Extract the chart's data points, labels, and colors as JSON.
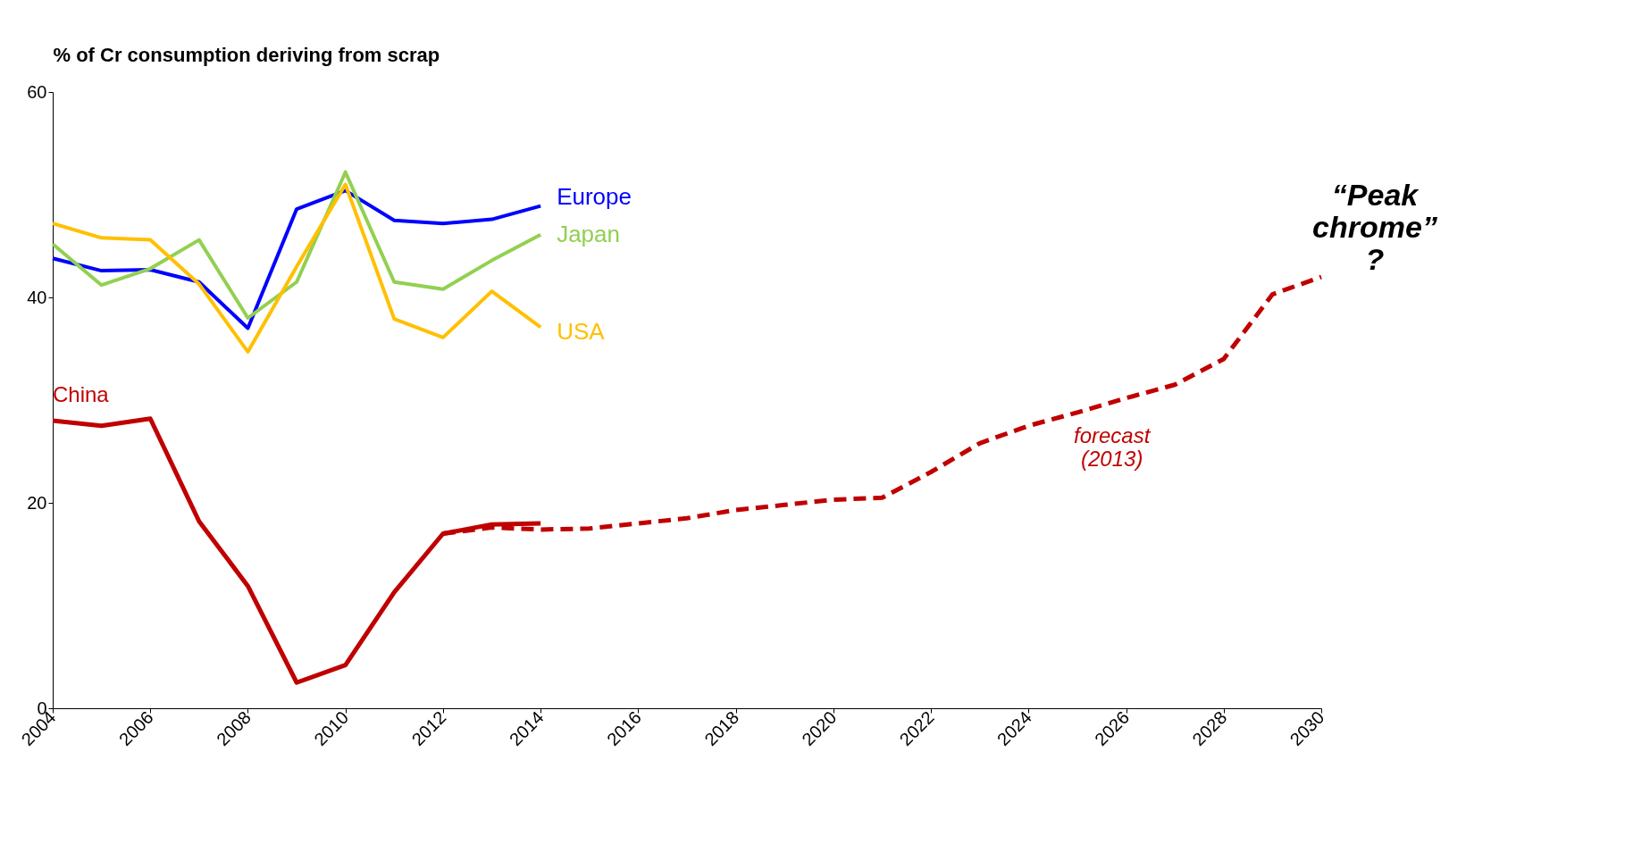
{
  "chart_data": {
    "type": "line",
    "ylabel": "% of Cr consumption deriving from scrap",
    "x": [
      2004,
      2005,
      2006,
      2007,
      2008,
      2009,
      2010,
      2011,
      2012,
      2013,
      2014
    ],
    "series": [
      {
        "name": "Europe",
        "color": "#0000ff",
        "values": [
          43.8,
          42.6,
          42.7,
          41.5,
          37.0,
          48.6,
          50.4,
          47.5,
          47.2,
          47.6,
          48.9
        ]
      },
      {
        "name": "Japan",
        "color": "#92d050",
        "values": [
          45.2,
          41.2,
          42.8,
          45.6,
          38.0,
          41.5,
          52.2,
          41.5,
          40.8,
          43.6,
          46.1
        ]
      },
      {
        "name": "USA",
        "color": "#ffc000",
        "values": [
          47.2,
          45.8,
          45.6,
          41.3,
          34.7,
          43.0,
          51.0,
          37.9,
          36.1,
          40.6,
          37.1
        ]
      },
      {
        "name": "China",
        "color": "#c00000",
        "values": [
          28.0,
          27.5,
          28.2,
          18.2,
          11.9,
          2.5,
          4.2,
          11.3,
          17.0,
          17.9,
          18.0
        ]
      },
      {
        "color": "#c00000",
        "line_style": "dashed",
        "x": [
          2012,
          2013,
          2014,
          2015,
          2016,
          2017,
          2018,
          2019,
          2020,
          2021,
          2022,
          2023,
          2024,
          2025,
          2026,
          2027,
          2028,
          2029,
          2030
        ],
        "values": [
          17.0,
          17.6,
          17.4,
          17.5,
          18.0,
          18.5,
          19.3,
          19.8,
          20.3,
          20.5,
          23.0,
          25.8,
          27.5,
          28.8,
          30.2,
          31.5,
          34.0,
          40.3,
          42.0
        ]
      }
    ],
    "xlim": [
      2004,
      2030
    ],
    "xticks": [
      2004,
      2006,
      2008,
      2010,
      2012,
      2014,
      2016,
      2018,
      2020,
      2022,
      2024,
      2026,
      2028,
      2030
    ],
    "ylim": [
      0,
      60
    ],
    "yticks": [
      0,
      20,
      40,
      60
    ],
    "annotations": [
      "forecast (2013)",
      "“Peak chrome” ?"
    ],
    "grid": false,
    "legend": false
  }
}
